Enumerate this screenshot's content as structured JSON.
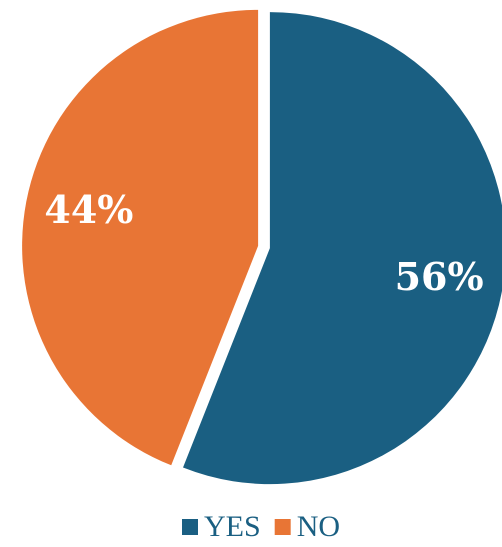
{
  "chart_data": {
    "type": "pie",
    "categories": [
      "YES",
      "NO"
    ],
    "values": [
      56,
      44
    ],
    "value_labels": [
      "56%",
      "44%"
    ],
    "colors": [
      "#1a5f82",
      "#e87535"
    ],
    "legend": "bottom"
  }
}
